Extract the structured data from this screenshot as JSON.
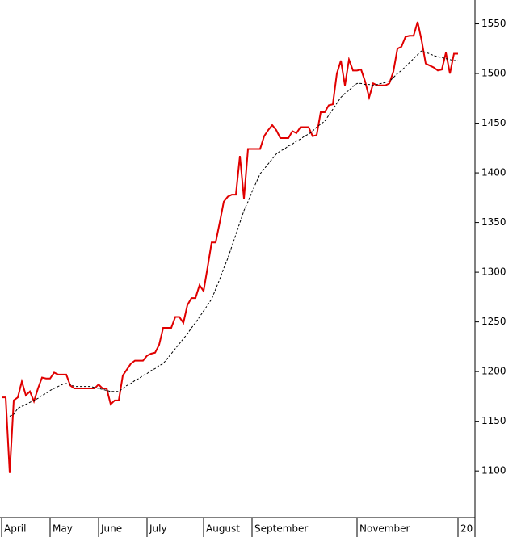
{
  "chart_data": {
    "type": "line",
    "categories": [
      "April",
      null,
      null,
      null,
      null,
      null,
      null,
      null,
      null,
      null,
      null,
      null,
      "May",
      null,
      null,
      null,
      null,
      null,
      null,
      null,
      null,
      null,
      null,
      null,
      "June",
      null,
      null,
      null,
      null,
      null,
      null,
      null,
      null,
      null,
      null,
      null,
      "July",
      null,
      null,
      null,
      null,
      null,
      null,
      null,
      null,
      null,
      null,
      null,
      null,
      null,
      "August",
      null,
      null,
      null,
      null,
      null,
      null,
      null,
      null,
      null,
      null,
      null,
      "September",
      null,
      null,
      null,
      null,
      null,
      null,
      null,
      null,
      null,
      null,
      null,
      null,
      null,
      null,
      null,
      null,
      null,
      null,
      null,
      null,
      null,
      null,
      null,
      null,
      null,
      "November",
      null,
      null,
      null,
      null,
      null,
      null,
      null,
      null,
      null,
      null,
      null,
      null,
      null,
      null,
      null,
      null,
      null,
      null,
      null,
      null,
      null,
      null,
      null,
      null,
      "20"
    ],
    "series": [
      {
        "color": "#e00000",
        "style": "solid",
        "values": [
          1174,
          1174,
          1098,
          1171,
          1174,
          1190,
          1176,
          1180,
          1170,
          1183,
          1194,
          1193,
          1193,
          1199,
          1197,
          1197,
          1197,
          1186,
          1183,
          1183,
          1183,
          1183,
          1183,
          1183,
          1187,
          1183,
          1183,
          1167,
          1171,
          1171,
          1196,
          1202,
          1208,
          1211,
          1211,
          1211,
          1216,
          1218,
          1219,
          1227,
          1244,
          1244,
          1244,
          1255,
          1255,
          1249,
          1267,
          1274,
          1274,
          1287,
          1281,
          1305,
          1330,
          1330,
          1350,
          1371,
          1376,
          1378,
          1378,
          1417,
          1374,
          1424,
          1424,
          1424,
          1424,
          1437,
          1443,
          1448,
          1443,
          1435,
          1435,
          1435,
          1442,
          1440,
          1446,
          1446,
          1446,
          1437,
          1438,
          1461,
          1461,
          1468,
          1469,
          1500,
          1513,
          1488,
          1514,
          1503,
          1503,
          1504,
          1492,
          1476,
          1490,
          1488,
          1488,
          1488,
          1490,
          1502,
          1525,
          1527,
          1537,
          1538,
          1538,
          1552,
          1533,
          1510,
          1508,
          1506,
          1503,
          1504,
          1521,
          1500,
          1520,
          1520
        ]
      },
      {
        "color": "#000000",
        "style": "dashed",
        "values": [
          null,
          null,
          1155,
          1157,
          1163,
          1165,
          1167,
          1169,
          1171,
          1173,
          1176,
          1178,
          1181,
          1183,
          1185,
          1187,
          1188,
          1187,
          1185,
          1185,
          1185,
          1185,
          1185,
          1184,
          1183,
          1182,
          1181,
          1180,
          1180,
          1180,
          1183,
          1186,
          1188,
          1191,
          1193,
          1196,
          1198,
          1201,
          1203,
          1206,
          1208,
          1213,
          1218,
          1223,
          1228,
          1233,
          1238,
          1244,
          1249,
          1255,
          1261,
          1267,
          1273,
          1283,
          1293,
          1304,
          1314,
          1326,
          1338,
          1350,
          1362,
          1371,
          1381,
          1390,
          1399,
          1404,
          1409,
          1414,
          1419,
          1422,
          1424,
          1427,
          1429,
          1432,
          1434,
          1437,
          1439,
          1442,
          1446,
          1449,
          1452,
          1458,
          1464,
          1470,
          1476,
          1480,
          1483,
          1487,
          1490,
          1490,
          1489,
          1489,
          1488,
          1489,
          1490,
          1491,
          1492,
          1496,
          1500,
          1503,
          1507,
          1511,
          1515,
          1519,
          1523,
          1521,
          1520,
          1518,
          1517,
          1516,
          1515,
          1514,
          1513,
          1513
        ]
      }
    ],
    "ylim": [
      1053,
      1574
    ],
    "yticks": [
      1100,
      1150,
      1200,
      1250,
      1300,
      1350,
      1400,
      1450,
      1500,
      1550
    ],
    "y_axis_side": "right"
  }
}
